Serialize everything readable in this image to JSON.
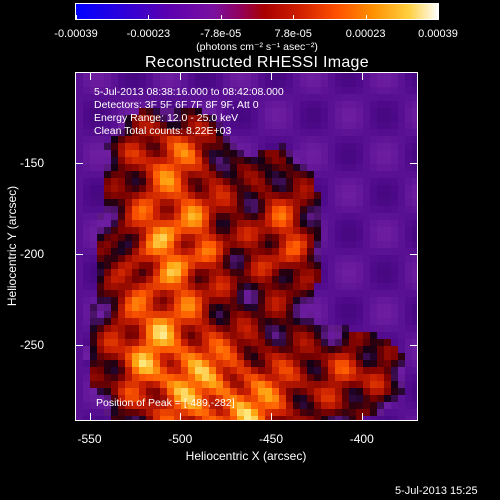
{
  "colorbar": {
    "ticks": [
      "-0.00039",
      "-0.00023",
      "-7.8e-05",
      "7.8e-05",
      "0.00023",
      "0.00039"
    ],
    "units": "(photons cm⁻² s⁻¹ asec⁻²)"
  },
  "title": "Reconstructed RHESSI Image",
  "info": {
    "time_range": "5-Jul-2013 08:38:16.000 to 08:42:08.000",
    "detectors": "Detectors: 3F 5F 6F 7F 8F 9F, Att 0",
    "energy_range": "Energy Range: 12.0 - 25.0 keV",
    "clean": "Clean    Total counts: 8.22E+03"
  },
  "peak": {
    "label": "Position of Peak = [-489,-282]"
  },
  "chart_data": {
    "type": "heatmap",
    "title": "Reconstructed RHESSI Image",
    "xlabel": "Heliocentric X (arcsec)",
    "ylabel": "Heliocentric Y (arcsec)",
    "x_ticks": [
      "-550",
      "-500",
      "-450",
      "-400"
    ],
    "y_ticks": [
      "-150",
      "-200",
      "-250"
    ],
    "x_tick_values": [
      -550,
      -500,
      -450,
      -400
    ],
    "y_tick_values": [
      -150,
      -200,
      -250
    ],
    "xlim": [
      -558,
      -369
    ],
    "ylim": [
      -292,
      -100
    ],
    "peak": [
      -489,
      -282
    ],
    "colorbar_range": [
      -0.00039,
      0.00039
    ]
  },
  "timestamp": "5-Jul-2013 15:25"
}
